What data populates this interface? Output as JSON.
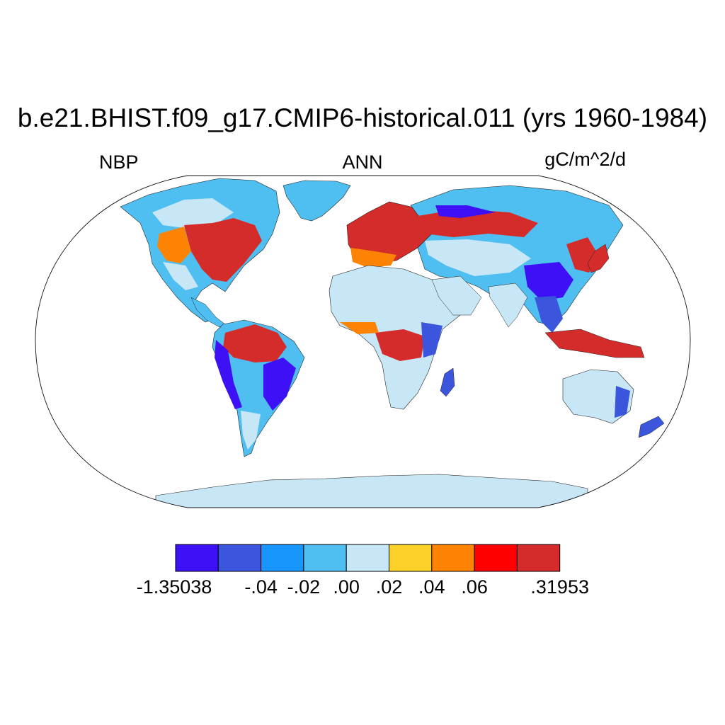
{
  "map": {
    "title": "b.e21.BHIST.f09_g17.CMIP6-historical.011 (yrs 1960-1984)",
    "left_label": "NBP",
    "center_label": "ANN",
    "units": "gC/m^2/d",
    "projection": "robinson",
    "background_color": "#ffffff"
  },
  "legend": {
    "colors": [
      "#3d10f5",
      "#3b55dd",
      "#1896fc",
      "#4fbff1",
      "#c7e6f6",
      "#fdd12a",
      "#fd8305",
      "#fd0000",
      "#d42c2b"
    ],
    "labels": [
      "-1.35038",
      "-.04",
      "-.02",
      ".00",
      ".02",
      ".04",
      ".06",
      ".31953"
    ]
  },
  "regions": [
    {
      "name": "eastern-north-america",
      "class": 8
    },
    {
      "name": "western-europe-russia",
      "class": 8
    },
    {
      "name": "amazon",
      "class": 8
    },
    {
      "name": "central-africa",
      "class": 8
    },
    {
      "name": "western-south-america",
      "class": 0
    },
    {
      "name": "southeast-asia",
      "class": 1
    },
    {
      "name": "sahara-arabia",
      "class": 4
    },
    {
      "name": "australia",
      "class": 4
    },
    {
      "name": "antarctica",
      "class": 4
    },
    {
      "name": "greenland",
      "class": 3
    }
  ]
}
